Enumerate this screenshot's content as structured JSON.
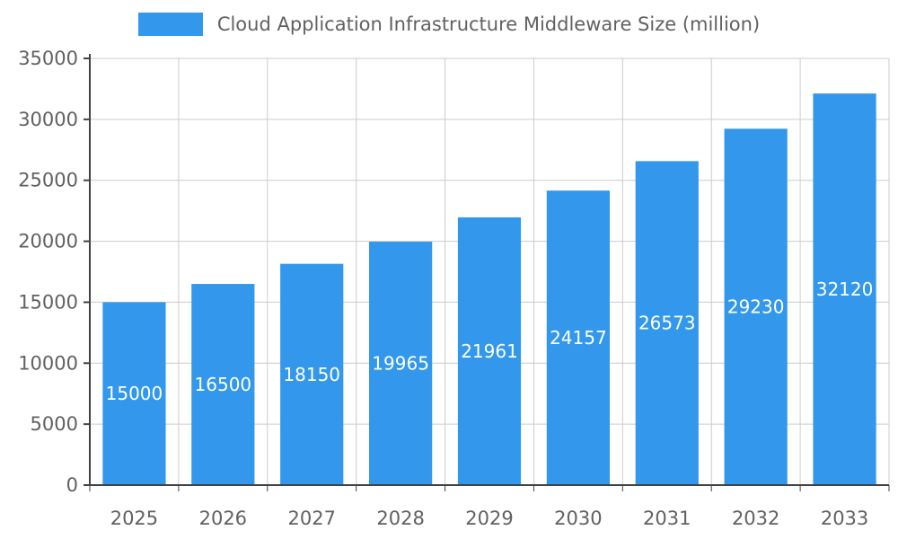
{
  "chart_data": {
    "type": "bar",
    "title": "Cloud Application Infrastructure Middleware Size (million)",
    "categories": [
      "2025",
      "2026",
      "2027",
      "2028",
      "2029",
      "2030",
      "2031",
      "2032",
      "2033"
    ],
    "values": [
      15000,
      16500,
      18150,
      19965,
      21961,
      24157,
      26573,
      29230,
      32120
    ],
    "xlabel": "",
    "ylabel": "",
    "ylim": [
      0,
      35000
    ],
    "ytick_step": 5000,
    "grid": true,
    "legend_position": "top",
    "colors": {
      "bar": "#3398EC",
      "value_label": "#FFFFFF",
      "axis_text": "#616161",
      "grid_line": "#CCCCCC",
      "axis_line": "#424242"
    }
  }
}
